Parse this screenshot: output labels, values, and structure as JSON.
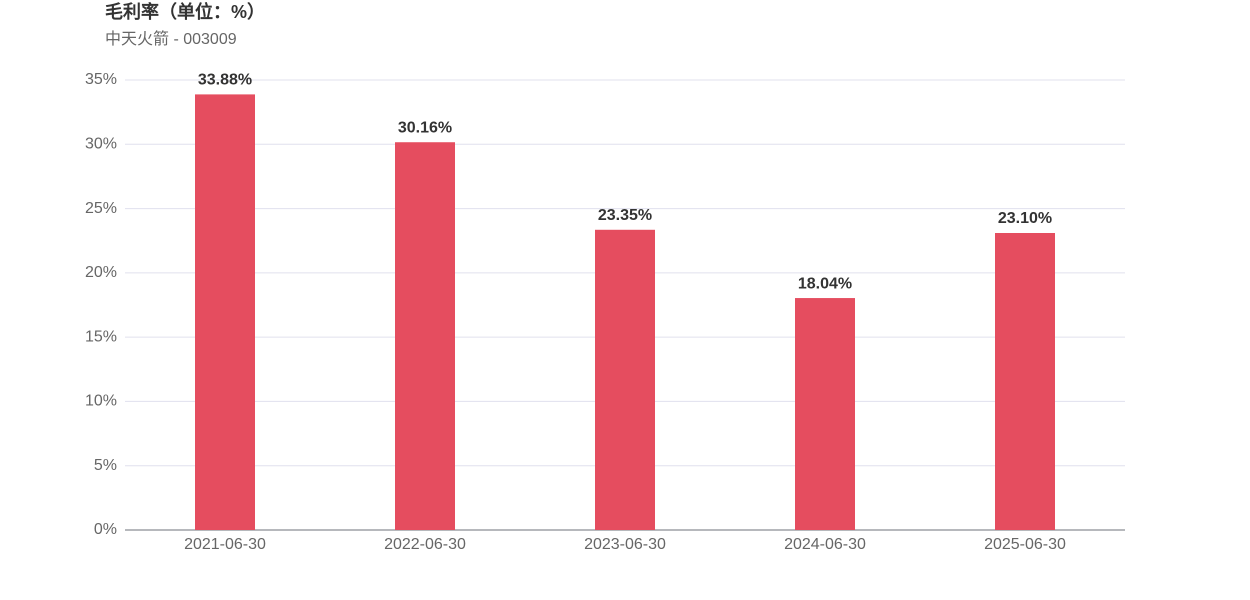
{
  "chart_data": {
    "type": "bar",
    "title": "毛利率（单位：%）",
    "subtitle": "中天火箭 - 003009",
    "categories": [
      "2021-06-30",
      "2022-06-30",
      "2023-06-30",
      "2024-06-30",
      "2025-06-30"
    ],
    "values": [
      33.88,
      30.16,
      23.35,
      18.04,
      23.1
    ],
    "value_labels": [
      "33.88%",
      "30.16%",
      "23.35%",
      "18.04%",
      "23.10%"
    ],
    "color": "#e54d5f",
    "ylim": [
      0,
      35
    ],
    "yticks": [
      {
        "value": 0,
        "label": "0%"
      },
      {
        "value": 5,
        "label": "5%"
      },
      {
        "value": 10,
        "label": "10%"
      },
      {
        "value": 15,
        "label": "15%"
      },
      {
        "value": 20,
        "label": "20%"
      },
      {
        "value": 25,
        "label": "25%"
      },
      {
        "value": 30,
        "label": "30%"
      },
      {
        "value": 35,
        "label": "35%"
      }
    ],
    "grid": true
  }
}
